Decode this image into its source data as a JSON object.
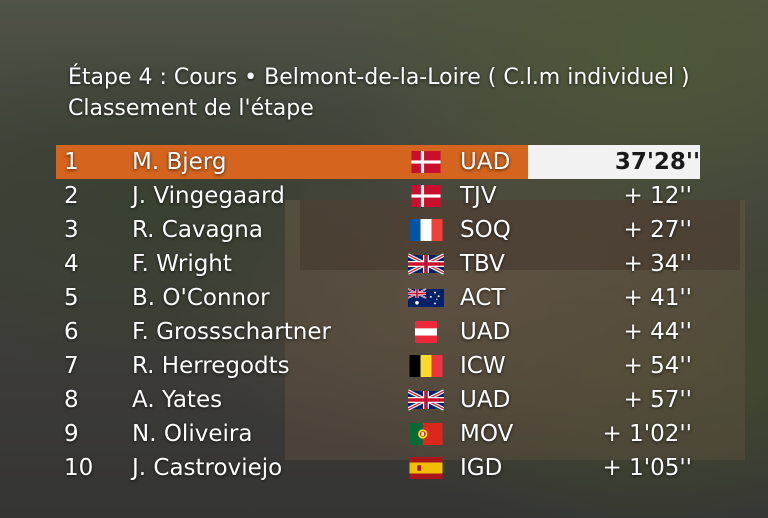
{
  "stage": {
    "title": "Étape 4 : Cours • Belmont-de-la-Loire ( C.l.m individuel )",
    "subtitle": "Classement de l'étape"
  },
  "colors": {
    "leader_bar": "#d4641e",
    "time_box": "#f2f2f2"
  },
  "riders": [
    {
      "rank": "1",
      "name": "M. Bjerg",
      "flag": "denmark",
      "team": "UAD",
      "time": "37'28''"
    },
    {
      "rank": "2",
      "name": "J. Vingegaard",
      "flag": "denmark",
      "team": "TJV",
      "time": "+  12''"
    },
    {
      "rank": "3",
      "name": "R. Cavagna",
      "flag": "france",
      "team": "SOQ",
      "time": "+  27''"
    },
    {
      "rank": "4",
      "name": "F. Wright",
      "flag": "uk",
      "team": "TBV",
      "time": "+  34''"
    },
    {
      "rank": "5",
      "name": "B. O'Connor",
      "flag": "australia",
      "team": "ACT",
      "time": "+  41''"
    },
    {
      "rank": "6",
      "name": "F. Grossschartner",
      "flag": "austria",
      "team": "UAD",
      "time": "+  44''"
    },
    {
      "rank": "7",
      "name": "R. Herregodts",
      "flag": "belgium",
      "team": "ICW",
      "time": "+  54''"
    },
    {
      "rank": "8",
      "name": "A. Yates",
      "flag": "uk",
      "team": "UAD",
      "time": "+  57''"
    },
    {
      "rank": "9",
      "name": "N. Oliveira",
      "flag": "portugal",
      "team": "MOV",
      "time": "+ 1'02''"
    },
    {
      "rank": "10",
      "name": "J. Castroviejo",
      "flag": "spain",
      "team": "IGD",
      "time": "+ 1'05''"
    }
  ]
}
